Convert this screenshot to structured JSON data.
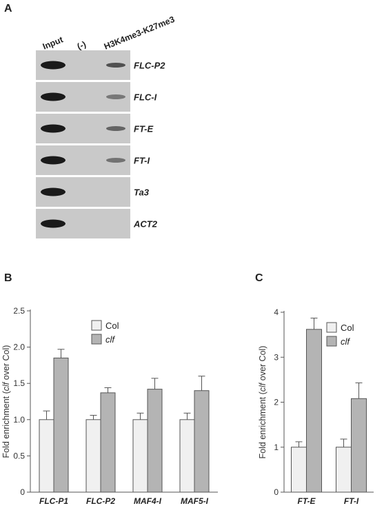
{
  "figure": {
    "panel_a": {
      "letter": "A",
      "lane_labels": [
        "Input",
        "(-)",
        "H3K4me3-K27me3"
      ],
      "gel_rows": [
        {
          "label": "FLC-P2",
          "input": 1.0,
          "neg": 0.0,
          "ip": 0.75
        },
        {
          "label": "FLC-I",
          "input": 1.0,
          "neg": 0.0,
          "ip": 0.35
        },
        {
          "label": "FT-E",
          "input": 1.0,
          "neg": 0.0,
          "ip": 0.55
        },
        {
          "label": "FT-I",
          "input": 1.0,
          "neg": 0.0,
          "ip": 0.4
        },
        {
          "label": "Ta3",
          "input": 1.0,
          "neg": 0.0,
          "ip": 0.0
        },
        {
          "label": "ACT2",
          "input": 1.0,
          "neg": 0.0,
          "ip": 0.0
        }
      ]
    },
    "panel_b": {
      "letter": "B"
    },
    "panel_c": {
      "letter": "C"
    }
  },
  "colors": {
    "col_bar": "#f0f0f0",
    "clf_bar": "#b4b4b4",
    "gel_bg": "#c9c9c9",
    "band": "#111111"
  },
  "chart_data": [
    {
      "type": "bar",
      "panel": "B",
      "categories": [
        "FLC-P1",
        "FLC-P2",
        "MAF4-I",
        "MAF5-I"
      ],
      "series": [
        {
          "name": "Col",
          "values": [
            1.0,
            1.0,
            1.0,
            1.0
          ],
          "errors": [
            0.12,
            0.06,
            0.09,
            0.09
          ]
        },
        {
          "name": "clf",
          "values": [
            1.85,
            1.37,
            1.42,
            1.4
          ],
          "errors": [
            0.12,
            0.07,
            0.15,
            0.2
          ]
        }
      ],
      "ylabel_parts": [
        "Fold enrichment (",
        "clf",
        " over Col)"
      ],
      "ylim": [
        0,
        2.5
      ],
      "yticks": [
        "0",
        "0.5",
        "1.0",
        "1.5",
        "2.0",
        "2.5"
      ],
      "ytick_values": [
        0,
        0.5,
        1.0,
        1.5,
        2.0,
        2.5
      ],
      "legend": [
        "Col",
        "clf"
      ],
      "legend_placement": "top-center",
      "grid": false
    },
    {
      "type": "bar",
      "panel": "C",
      "categories": [
        "FT-E",
        "FT-I"
      ],
      "series": [
        {
          "name": "Col",
          "values": [
            1.0,
            1.0
          ],
          "errors": [
            0.12,
            0.18
          ]
        },
        {
          "name": "clf",
          "values": [
            3.62,
            2.08
          ],
          "errors": [
            0.25,
            0.35
          ]
        }
      ],
      "ylabel_parts": [
        "Fold enrichment (",
        "clf",
        " over Col)"
      ],
      "ylim": [
        0,
        4
      ],
      "yticks": [
        "0",
        "1",
        "2",
        "3",
        "4"
      ],
      "ytick_values": [
        0,
        1,
        2,
        3,
        4
      ],
      "legend": [
        "Col",
        "clf"
      ],
      "legend_placement": "top-right",
      "grid": false
    }
  ]
}
